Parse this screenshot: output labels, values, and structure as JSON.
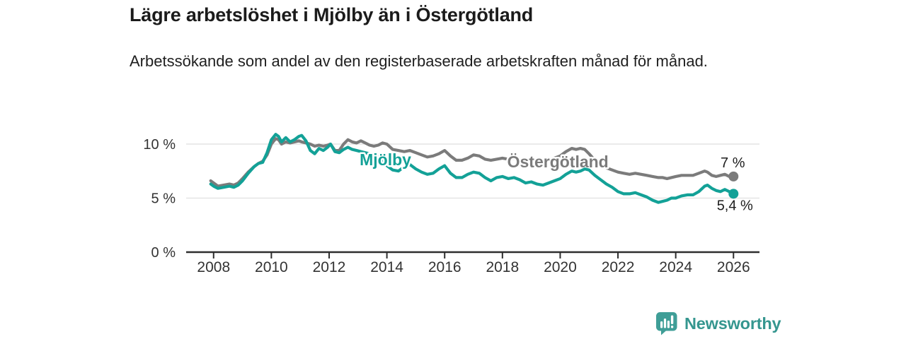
{
  "header": {
    "title": "Lägre arbetslöshet i Mjölby än i Östergötland",
    "subtitle": "Arbetssökande som andel av den registerbaserade arbetskraften månad för månad."
  },
  "footer": {
    "brand": "Newsworthy",
    "logo_icon": "bar-chart-speech-bubble-icon"
  },
  "colors": {
    "mjolby_teal": "#13a197",
    "ostergotland_gray": "#7b7b7b",
    "gridline": "#e4e4e4",
    "axis": "#2e2e2e",
    "tick_text": "#333333",
    "label_text": "#1d1d1d",
    "brand_teal": "#35968f",
    "background": "#ffffff"
  },
  "chart_data": {
    "type": "line",
    "title": "Lägre arbetslöshet i Mjölby än i Östergötland",
    "xlabel": "",
    "ylabel": "",
    "x_unit": "year (monthly series)",
    "grid": "horizontal-only",
    "legend_position": "inline-labels-on-lines",
    "xlim": [
      2007.05,
      2026.9
    ],
    "ylim": [
      0,
      11.5
    ],
    "yticks": [
      {
        "value": 0,
        "label": "0 %"
      },
      {
        "value": 5,
        "label": "5 %"
      },
      {
        "value": 10,
        "label": "10 %"
      }
    ],
    "xticks": [
      {
        "value": 2008,
        "label": "2008"
      },
      {
        "value": 2010,
        "label": "2010"
      },
      {
        "value": 2012,
        "label": "2012"
      },
      {
        "value": 2014,
        "label": "2014"
      },
      {
        "value": 2016,
        "label": "2016"
      },
      {
        "value": 2018,
        "label": "2018"
      },
      {
        "value": 2020,
        "label": "2020"
      },
      {
        "value": 2022,
        "label": "2022"
      },
      {
        "value": 2024,
        "label": "2024"
      },
      {
        "value": 2026,
        "label": "2026"
      }
    ],
    "series": [
      {
        "name": "Östergötland",
        "slug": "ostergotland",
        "color": "#7b7b7b",
        "end_label": "7 %",
        "end_label_side": "above",
        "inline_label": {
          "x": 2019.92,
          "y": 8.35
        },
        "points": [
          [
            2007.9,
            6.6
          ],
          [
            2008.0,
            6.4
          ],
          [
            2008.15,
            6.1
          ],
          [
            2008.35,
            6.2
          ],
          [
            2008.55,
            6.3
          ],
          [
            2008.7,
            6.2
          ],
          [
            2008.85,
            6.4
          ],
          [
            2009.0,
            6.8
          ],
          [
            2009.2,
            7.4
          ],
          [
            2009.4,
            7.9
          ],
          [
            2009.55,
            8.2
          ],
          [
            2009.7,
            8.4
          ],
          [
            2009.85,
            9.0
          ],
          [
            2010.0,
            10.0
          ],
          [
            2010.15,
            10.5
          ],
          [
            2010.25,
            10.4
          ],
          [
            2010.35,
            10.0
          ],
          [
            2010.5,
            10.2
          ],
          [
            2010.65,
            10.1
          ],
          [
            2010.8,
            10.2
          ],
          [
            2010.95,
            10.3
          ],
          [
            2011.05,
            10.2
          ],
          [
            2011.2,
            10.1
          ],
          [
            2011.35,
            10.0
          ],
          [
            2011.5,
            9.8
          ],
          [
            2011.65,
            9.9
          ],
          [
            2011.8,
            9.8
          ],
          [
            2011.95,
            9.9
          ],
          [
            2012.05,
            10.0
          ],
          [
            2012.2,
            9.4
          ],
          [
            2012.35,
            9.4
          ],
          [
            2012.5,
            10.0
          ],
          [
            2012.65,
            10.4
          ],
          [
            2012.8,
            10.2
          ],
          [
            2012.95,
            10.1
          ],
          [
            2013.1,
            10.3
          ],
          [
            2013.25,
            10.1
          ],
          [
            2013.4,
            9.9
          ],
          [
            2013.55,
            9.8
          ],
          [
            2013.7,
            9.9
          ],
          [
            2013.85,
            10.1
          ],
          [
            2014.0,
            10.0
          ],
          [
            2014.2,
            9.5
          ],
          [
            2014.4,
            9.4
          ],
          [
            2014.6,
            9.3
          ],
          [
            2014.8,
            9.4
          ],
          [
            2015.0,
            9.2
          ],
          [
            2015.2,
            9.0
          ],
          [
            2015.4,
            8.8
          ],
          [
            2015.6,
            8.9
          ],
          [
            2015.8,
            9.1
          ],
          [
            2016.0,
            9.4
          ],
          [
            2016.2,
            8.9
          ],
          [
            2016.4,
            8.5
          ],
          [
            2016.6,
            8.5
          ],
          [
            2016.8,
            8.7
          ],
          [
            2017.0,
            9.0
          ],
          [
            2017.2,
            8.9
          ],
          [
            2017.4,
            8.6
          ],
          [
            2017.6,
            8.5
          ],
          [
            2017.8,
            8.6
          ],
          [
            2018.0,
            8.7
          ],
          [
            2018.2,
            8.6
          ],
          [
            2018.4,
            8.7
          ],
          [
            2018.6,
            8.5
          ],
          [
            2018.8,
            8.4
          ],
          [
            2019.0,
            8.5
          ],
          [
            2019.2,
            8.4
          ],
          [
            2019.4,
            8.5
          ],
          [
            2019.6,
            8.5
          ],
          [
            2019.8,
            8.7
          ],
          [
            2020.0,
            8.9
          ],
          [
            2020.2,
            9.3
          ],
          [
            2020.4,
            9.6
          ],
          [
            2020.55,
            9.5
          ],
          [
            2020.7,
            9.6
          ],
          [
            2020.85,
            9.5
          ],
          [
            2021.0,
            9.1
          ],
          [
            2021.2,
            8.5
          ],
          [
            2021.4,
            8.0
          ],
          [
            2021.6,
            7.8
          ],
          [
            2021.8,
            7.6
          ],
          [
            2022.0,
            7.4
          ],
          [
            2022.2,
            7.3
          ],
          [
            2022.4,
            7.2
          ],
          [
            2022.6,
            7.3
          ],
          [
            2022.8,
            7.2
          ],
          [
            2023.0,
            7.1
          ],
          [
            2023.2,
            7.0
          ],
          [
            2023.4,
            6.9
          ],
          [
            2023.55,
            6.9
          ],
          [
            2023.7,
            6.8
          ],
          [
            2023.85,
            6.9
          ],
          [
            2024.0,
            7.0
          ],
          [
            2024.2,
            7.1
          ],
          [
            2024.4,
            7.1
          ],
          [
            2024.6,
            7.1
          ],
          [
            2024.8,
            7.3
          ],
          [
            2025.0,
            7.5
          ],
          [
            2025.1,
            7.4
          ],
          [
            2025.25,
            7.1
          ],
          [
            2025.4,
            7.0
          ],
          [
            2025.55,
            7.1
          ],
          [
            2025.7,
            7.2
          ],
          [
            2025.85,
            7.0
          ],
          [
            2026.0,
            7.0
          ]
        ]
      },
      {
        "name": "Mjölby",
        "slug": "mjolby",
        "color": "#13a197",
        "end_label": "5,4 %",
        "end_label_side": "below",
        "inline_label": {
          "x": 2013.95,
          "y": 8.55
        },
        "points": [
          [
            2007.9,
            6.3
          ],
          [
            2008.0,
            6.1
          ],
          [
            2008.15,
            5.9
          ],
          [
            2008.35,
            6.0
          ],
          [
            2008.55,
            6.1
          ],
          [
            2008.7,
            6.0
          ],
          [
            2008.85,
            6.2
          ],
          [
            2009.0,
            6.6
          ],
          [
            2009.2,
            7.3
          ],
          [
            2009.4,
            7.9
          ],
          [
            2009.55,
            8.2
          ],
          [
            2009.7,
            8.3
          ],
          [
            2009.85,
            9.2
          ],
          [
            2010.0,
            10.4
          ],
          [
            2010.15,
            10.9
          ],
          [
            2010.25,
            10.7
          ],
          [
            2010.35,
            10.2
          ],
          [
            2010.5,
            10.6
          ],
          [
            2010.65,
            10.2
          ],
          [
            2010.8,
            10.4
          ],
          [
            2010.95,
            10.7
          ],
          [
            2011.05,
            10.8
          ],
          [
            2011.2,
            10.3
          ],
          [
            2011.35,
            9.4
          ],
          [
            2011.5,
            9.1
          ],
          [
            2011.65,
            9.6
          ],
          [
            2011.8,
            9.4
          ],
          [
            2011.95,
            9.7
          ],
          [
            2012.05,
            10.0
          ],
          [
            2012.2,
            9.3
          ],
          [
            2012.35,
            9.2
          ],
          [
            2012.5,
            9.5
          ],
          [
            2012.65,
            9.7
          ],
          [
            2012.8,
            9.5
          ],
          [
            2012.95,
            9.4
          ],
          [
            2013.1,
            9.3
          ],
          [
            2013.25,
            9.2
          ],
          [
            2013.4,
            9.1
          ],
          [
            2013.55,
            9.0
          ],
          [
            2013.7,
            8.9
          ],
          [
            2013.85,
            8.4
          ],
          [
            2014.0,
            8.0
          ],
          [
            2014.2,
            7.6
          ],
          [
            2014.4,
            7.5
          ],
          [
            2014.6,
            7.9
          ],
          [
            2014.8,
            8.1
          ],
          [
            2015.0,
            7.7
          ],
          [
            2015.2,
            7.4
          ],
          [
            2015.4,
            7.2
          ],
          [
            2015.6,
            7.3
          ],
          [
            2015.8,
            7.7
          ],
          [
            2016.0,
            8.0
          ],
          [
            2016.2,
            7.3
          ],
          [
            2016.4,
            6.9
          ],
          [
            2016.6,
            6.9
          ],
          [
            2016.8,
            7.2
          ],
          [
            2017.0,
            7.4
          ],
          [
            2017.2,
            7.3
          ],
          [
            2017.4,
            6.9
          ],
          [
            2017.6,
            6.6
          ],
          [
            2017.8,
            6.9
          ],
          [
            2018.0,
            7.0
          ],
          [
            2018.2,
            6.8
          ],
          [
            2018.4,
            6.9
          ],
          [
            2018.6,
            6.7
          ],
          [
            2018.8,
            6.4
          ],
          [
            2019.0,
            6.5
          ],
          [
            2019.2,
            6.3
          ],
          [
            2019.4,
            6.2
          ],
          [
            2019.6,
            6.4
          ],
          [
            2019.8,
            6.6
          ],
          [
            2020.0,
            6.8
          ],
          [
            2020.2,
            7.2
          ],
          [
            2020.4,
            7.5
          ],
          [
            2020.55,
            7.4
          ],
          [
            2020.7,
            7.5
          ],
          [
            2020.85,
            7.7
          ],
          [
            2021.0,
            7.6
          ],
          [
            2021.2,
            7.1
          ],
          [
            2021.4,
            6.7
          ],
          [
            2021.6,
            6.3
          ],
          [
            2021.8,
            6.0
          ],
          [
            2022.0,
            5.6
          ],
          [
            2022.2,
            5.4
          ],
          [
            2022.4,
            5.4
          ],
          [
            2022.6,
            5.5
          ],
          [
            2022.8,
            5.3
          ],
          [
            2023.0,
            5.1
          ],
          [
            2023.2,
            4.8
          ],
          [
            2023.4,
            4.6
          ],
          [
            2023.55,
            4.7
          ],
          [
            2023.7,
            4.8
          ],
          [
            2023.85,
            5.0
          ],
          [
            2024.0,
            5.0
          ],
          [
            2024.2,
            5.2
          ],
          [
            2024.4,
            5.3
          ],
          [
            2024.6,
            5.3
          ],
          [
            2024.8,
            5.6
          ],
          [
            2025.0,
            6.1
          ],
          [
            2025.1,
            6.2
          ],
          [
            2025.25,
            5.9
          ],
          [
            2025.4,
            5.7
          ],
          [
            2025.55,
            5.6
          ],
          [
            2025.7,
            5.8
          ],
          [
            2025.85,
            5.6
          ],
          [
            2026.0,
            5.4
          ]
        ]
      }
    ]
  }
}
